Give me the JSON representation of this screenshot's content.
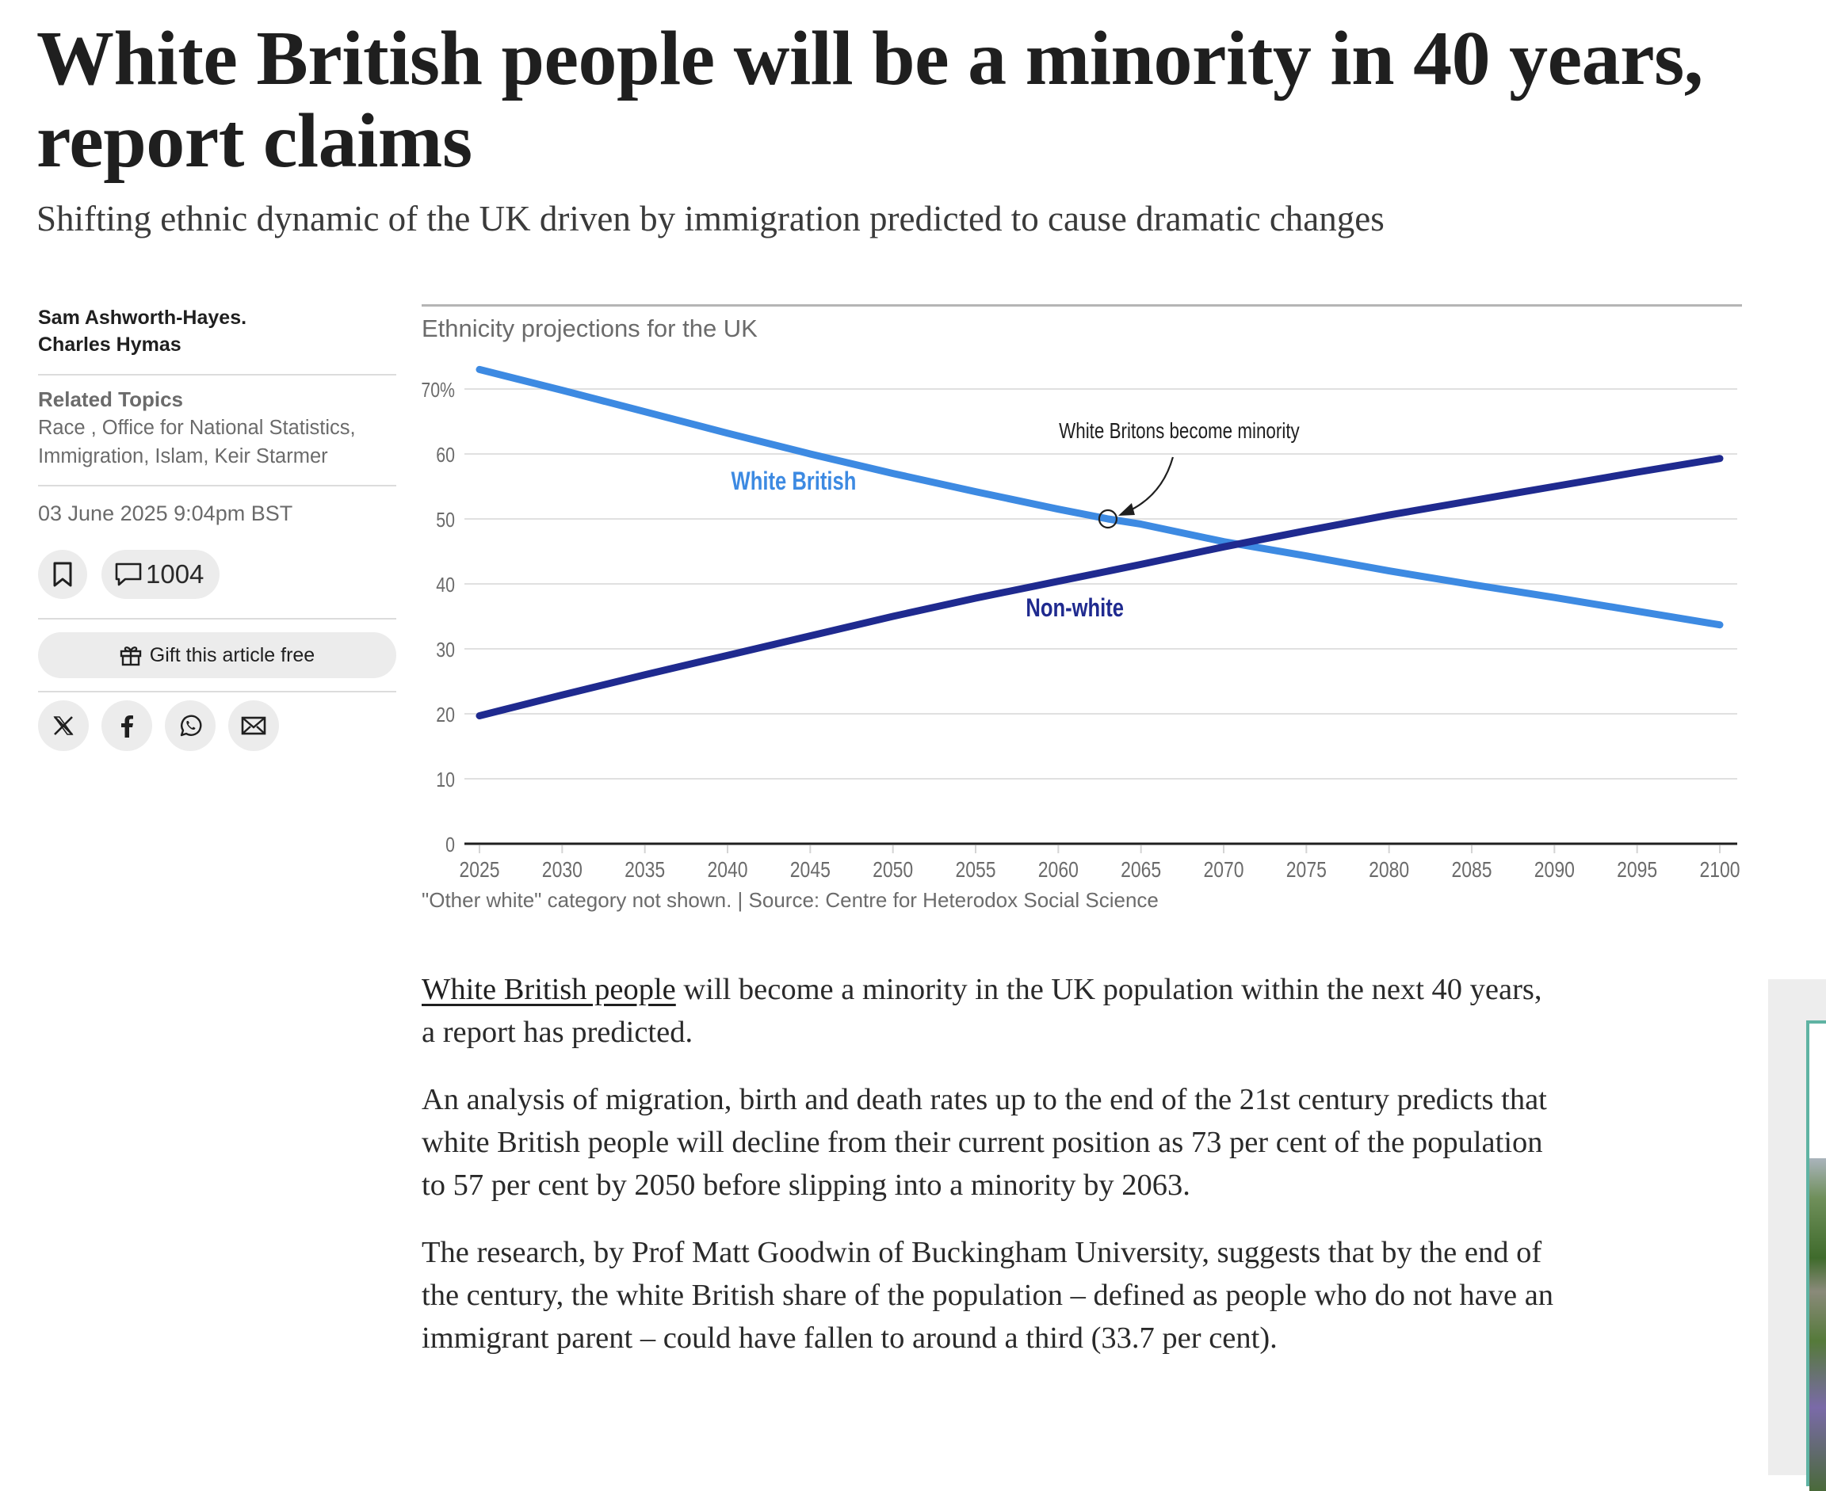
{
  "headline": "White British people will be a minority in 40 years, report claims",
  "standfirst": "Shifting ethnic dynamic of the UK driven by immigration predicted to cause dramatic changes",
  "sidebar": {
    "authors": [
      "Sam Ashworth-Hayes.",
      "Charles Hymas"
    ],
    "related_topics_label": "Related Topics",
    "topics": [
      "Race ,",
      "Office for National Statistics,",
      "Immigration,",
      "Islam,",
      "Keir Starmer"
    ],
    "date": "03 June 2025 9:04pm BST",
    "comment_count": "1004",
    "gift_label": "Gift this article free",
    "icons": {
      "bookmark": "bookmark-icon",
      "comment": "comment-icon",
      "gift": "gift-icon",
      "share": [
        "x-icon",
        "facebook-icon",
        "whatsapp-icon",
        "email-icon"
      ]
    }
  },
  "chart_data": {
    "type": "line",
    "title": "Ethnicity projections for the UK",
    "xlabel": "",
    "ylabel": "",
    "x_ticks": [
      "2025",
      "2030",
      "2035",
      "2040",
      "2045",
      "2050",
      "2055",
      "2060",
      "2065",
      "2070",
      "2075",
      "2080",
      "2085",
      "2090",
      "2095",
      "2100"
    ],
    "y_ticks": [
      "0",
      "10",
      "20",
      "30",
      "40",
      "50",
      "60",
      "70%"
    ],
    "xlim": [
      2025,
      2100
    ],
    "ylim": [
      0,
      70
    ],
    "grid": true,
    "series": [
      {
        "name": "White British",
        "color": "#3d8ae2",
        "x": [
          2025,
          2030,
          2035,
          2040,
          2045,
          2050,
          2055,
          2060,
          2063,
          2065,
          2070,
          2075,
          2080,
          2085,
          2090,
          2095,
          2100
        ],
        "values": [
          73.0,
          69.8,
          66.5,
          63.2,
          60.0,
          57.0,
          54.2,
          51.5,
          50.0,
          49.2,
          46.5,
          44.3,
          42.0,
          39.9,
          37.9,
          35.8,
          33.7
        ]
      },
      {
        "name": "Non-white",
        "color": "#1f2a8f",
        "x": [
          2025,
          2030,
          2035,
          2040,
          2045,
          2050,
          2055,
          2060,
          2065,
          2070,
          2075,
          2080,
          2085,
          2090,
          2095,
          2100
        ],
        "values": [
          19.7,
          22.9,
          26.0,
          29.0,
          32.0,
          35.0,
          37.8,
          40.4,
          43.0,
          45.7,
          48.2,
          50.6,
          52.8,
          55.0,
          57.2,
          59.3
        ]
      }
    ],
    "annotation": {
      "text": "White Britons become minority",
      "x": 2063,
      "y": 50
    },
    "note": "\"Other white\" category not shown. | Source: Centre for Heterodox Social Science"
  },
  "article": {
    "p1_link": "White British people",
    "p1_rest": " will become a minority in the UK population within the next 40 years, a report has predicted.",
    "p2": "An analysis of migration, birth and death rates up to the end of the 21st century predicts that white British people will decline from their current position as 73 per cent of the population to 57 per cent by 2050 before slipping into a minority by 2063.",
    "p3": "The research, by Prof Matt Goodwin of Buckingham University, suggests that by the end of the century, the white British share of the population – defined as people who do not have an immigrant parent – could have fallen to around a third (33.7 per cent)."
  },
  "ad": {
    "border_color": "#5fb3a3"
  }
}
